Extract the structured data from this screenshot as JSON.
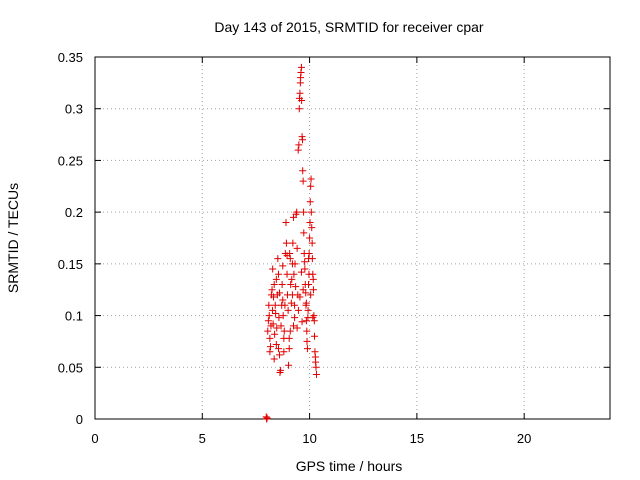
{
  "chart_data": {
    "type": "scatter",
    "title": "Day 143 of 2015, SRMTID for receiver cpar",
    "xlabel": "GPS time / hours",
    "ylabel": "SRMTID / TECUs",
    "xlim": [
      0,
      24
    ],
    "ylim": [
      0,
      0.35
    ],
    "x_ticks": [
      0,
      5,
      10,
      15,
      20
    ],
    "x_tick_labels": [
      "0",
      "5",
      "10",
      "15",
      "20"
    ],
    "y_ticks": [
      0,
      0.05,
      0.1,
      0.15,
      0.2,
      0.25,
      0.3,
      0.35
    ],
    "y_tick_labels": [
      "0",
      "0.05",
      "0.1",
      "0.15",
      "0.2",
      "0.25",
      "0.3",
      "0.35"
    ],
    "grid": true,
    "marker": "plus",
    "color": "#e00000",
    "series": [
      {
        "name": "SRMTID",
        "points": [
          [
            8.0,
            0.0
          ],
          [
            8.02,
            0.001
          ],
          [
            7.98,
            0.002
          ],
          [
            8.05,
            0.085
          ],
          [
            8.08,
            0.095
          ],
          [
            8.1,
            0.11
          ],
          [
            8.12,
            0.1
          ],
          [
            8.15,
            0.065
          ],
          [
            8.18,
            0.07
          ],
          [
            8.2,
            0.09
          ],
          [
            8.22,
            0.12
          ],
          [
            8.25,
            0.125
          ],
          [
            8.27,
            0.105
          ],
          [
            8.3,
            0.092
          ],
          [
            8.32,
            0.118
          ],
          [
            8.35,
            0.13
          ],
          [
            8.37,
            0.082
          ],
          [
            8.4,
            0.11
          ],
          [
            8.42,
            0.102
          ],
          [
            8.45,
            0.072
          ],
          [
            8.47,
            0.088
          ],
          [
            8.5,
            0.12
          ],
          [
            8.52,
            0.155
          ],
          [
            8.55,
            0.14
          ],
          [
            8.57,
            0.098
          ],
          [
            8.6,
            0.062
          ],
          [
            8.62,
            0.045
          ],
          [
            8.65,
            0.047
          ],
          [
            8.67,
            0.09
          ],
          [
            8.7,
            0.11
          ],
          [
            8.72,
            0.13
          ],
          [
            8.75,
            0.115
          ],
          [
            8.77,
            0.1
          ],
          [
            8.8,
            0.078
          ],
          [
            8.82,
            0.085
          ],
          [
            8.85,
            0.11
          ],
          [
            8.87,
            0.16
          ],
          [
            8.9,
            0.19
          ],
          [
            8.92,
            0.17
          ],
          [
            8.95,
            0.14
          ],
          [
            8.97,
            0.12
          ],
          [
            9.0,
            0.105
          ],
          [
            9.02,
            0.052
          ],
          [
            9.05,
            0.068
          ],
          [
            9.07,
            0.16
          ],
          [
            9.1,
            0.155
          ],
          [
            9.12,
            0.13
          ],
          [
            9.15,
            0.112
          ],
          [
            9.17,
            0.135
          ],
          [
            9.2,
            0.15
          ],
          [
            9.22,
            0.17
          ],
          [
            9.25,
            0.195
          ],
          [
            9.27,
            0.14
          ],
          [
            9.3,
            0.11
          ],
          [
            9.32,
            0.15
          ],
          [
            9.35,
            0.128
          ],
          [
            9.37,
            0.198
          ],
          [
            9.4,
            0.2
          ],
          [
            9.42,
            0.165
          ],
          [
            9.45,
            0.12
          ],
          [
            9.47,
            0.26
          ],
          [
            9.5,
            0.265
          ],
          [
            9.52,
            0.3
          ],
          [
            9.53,
            0.31
          ],
          [
            9.55,
            0.315
          ],
          [
            9.57,
            0.325
          ],
          [
            9.58,
            0.33
          ],
          [
            9.6,
            0.335
          ],
          [
            9.62,
            0.34
          ],
          [
            9.63,
            0.308
          ],
          [
            9.65,
            0.273
          ],
          [
            9.67,
            0.27
          ],
          [
            9.68,
            0.24
          ],
          [
            9.7,
            0.23
          ],
          [
            9.72,
            0.2
          ],
          [
            9.73,
            0.18
          ],
          [
            9.75,
            0.16
          ],
          [
            9.77,
            0.152
          ],
          [
            9.78,
            0.145
          ],
          [
            9.8,
            0.13
          ],
          [
            9.82,
            0.122
          ],
          [
            9.83,
            0.11
          ],
          [
            9.85,
            0.095
          ],
          [
            9.87,
            0.085
          ],
          [
            9.88,
            0.075
          ],
          [
            9.9,
            0.068
          ],
          [
            9.92,
            0.098
          ],
          [
            9.93,
            0.105
          ],
          [
            9.95,
            0.13
          ],
          [
            9.97,
            0.14
          ],
          [
            9.98,
            0.16
          ],
          [
            10.0,
            0.175
          ],
          [
            10.02,
            0.19
          ],
          [
            10.03,
            0.21
          ],
          [
            10.05,
            0.225
          ],
          [
            10.07,
            0.232
          ],
          [
            10.08,
            0.2
          ],
          [
            10.1,
            0.185
          ],
          [
            10.12,
            0.17
          ],
          [
            10.13,
            0.155
          ],
          [
            10.15,
            0.14
          ],
          [
            10.17,
            0.135
          ],
          [
            10.18,
            0.125
          ],
          [
            10.2,
            0.1
          ],
          [
            10.22,
            0.095
          ],
          [
            10.23,
            0.08
          ],
          [
            10.25,
            0.065
          ],
          [
            10.27,
            0.06
          ],
          [
            10.28,
            0.055
          ],
          [
            10.3,
            0.05
          ],
          [
            10.32,
            0.043
          ],
          [
            8.28,
            0.145
          ],
          [
            8.45,
            0.135
          ],
          [
            8.6,
            0.122
          ],
          [
            8.75,
            0.148
          ],
          [
            8.95,
            0.158
          ],
          [
            9.1,
            0.085
          ],
          [
            9.2,
            0.12
          ],
          [
            9.3,
            0.098
          ],
          [
            9.42,
            0.088
          ],
          [
            9.55,
            0.118
          ],
          [
            9.62,
            0.142
          ],
          [
            9.7,
            0.125
          ],
          [
            9.85,
            0.112
          ],
          [
            9.95,
            0.155
          ],
          [
            10.05,
            0.12
          ],
          [
            10.15,
            0.098
          ],
          [
            8.15,
            0.078
          ],
          [
            8.35,
            0.058
          ],
          [
            8.55,
            0.068
          ],
          [
            8.8,
            0.065
          ],
          [
            9.05,
            0.078
          ],
          [
            9.25,
            0.09
          ],
          [
            9.48,
            0.105
          ],
          [
            9.65,
            0.094
          ]
        ]
      }
    ]
  }
}
